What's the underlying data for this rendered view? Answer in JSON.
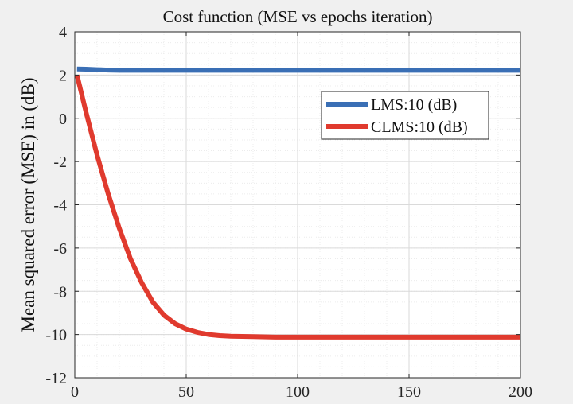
{
  "chart_data": {
    "type": "line",
    "title": "Cost function (MSE vs epochs iteration)",
    "xlabel": "",
    "ylabel": "Mean squared error (MSE) in (dB)",
    "xlim": [
      0,
      200
    ],
    "ylim": [
      -12,
      4
    ],
    "xticks": [
      0,
      50,
      100,
      150,
      200
    ],
    "yticks": [
      -12,
      -10,
      -8,
      -6,
      -4,
      -2,
      0,
      2,
      4
    ],
    "grid": true,
    "minor_grid": true,
    "legend_position": "top-right",
    "series": [
      {
        "name": "LMS:10 (dB)",
        "color": "#3a6fb5",
        "x": [
          1,
          5,
          10,
          15,
          20,
          50,
          100,
          150,
          200
        ],
        "y": [
          2.28,
          2.27,
          2.25,
          2.23,
          2.22,
          2.22,
          2.22,
          2.22,
          2.22
        ]
      },
      {
        "name": "CLMS:10 (dB)",
        "color": "#e03a2e",
        "x": [
          1,
          5,
          10,
          15,
          20,
          25,
          30,
          35,
          40,
          45,
          50,
          55,
          60,
          65,
          70,
          80,
          90,
          100,
          125,
          150,
          175,
          200
        ],
        "y": [
          2.0,
          0.3,
          -1.7,
          -3.5,
          -5.1,
          -6.5,
          -7.6,
          -8.5,
          -9.1,
          -9.5,
          -9.75,
          -9.9,
          -10.0,
          -10.05,
          -10.08,
          -10.1,
          -10.12,
          -10.12,
          -10.12,
          -10.12,
          -10.12,
          -10.12
        ]
      }
    ]
  }
}
